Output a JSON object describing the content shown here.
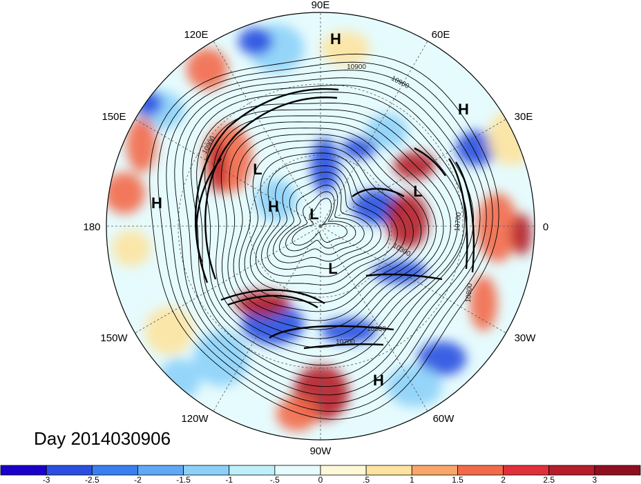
{
  "title": "Day 2014030906",
  "longitude_labels": [
    "90E",
    "60E",
    "30E",
    "0",
    "30W",
    "60W",
    "90W",
    "120W",
    "150W",
    "180",
    "150E",
    "120E"
  ],
  "pressure_centers": [
    {
      "type": "H",
      "lon_label": "~90E"
    },
    {
      "type": "H",
      "lon_label": "~40E"
    },
    {
      "type": "L",
      "lon_label": "~10E"
    },
    {
      "type": "L",
      "lon_label": "~135E"
    },
    {
      "type": "H",
      "lon_label": "~150E"
    },
    {
      "type": "L",
      "lon_label": "~170E"
    },
    {
      "type": "H",
      "lon_label": "~180"
    },
    {
      "type": "L",
      "lon_label": "~110W"
    },
    {
      "type": "H",
      "lon_label": "~75W"
    }
  ],
  "contour_labels": [
    "10900",
    "10900",
    "10900",
    "10300",
    "10700",
    "10800",
    "10700",
    "10300"
  ],
  "colorbar": {
    "tick_labels": [
      "-3",
      "-2.5",
      "-2",
      "-1.5",
      "-1",
      "-.5",
      "0",
      ".5",
      "1",
      "1.5",
      "2",
      "2.5",
      "3"
    ],
    "colors": [
      "#1a00c8",
      "#2a4fe0",
      "#3a7ff0",
      "#60a8f5",
      "#8cd0f8",
      "#bdf0fb",
      "#e6fbfd",
      "#fdf8d8",
      "#fde3a0",
      "#f9a66a",
      "#f26a4a",
      "#e0303a",
      "#b51d2a",
      "#8f0f1f"
    ]
  },
  "shading_colors": {
    "strong_negative": "#2a4fe0",
    "negative": "#8cd0f8",
    "weak_negative": "#e6fbfd",
    "weak_positive": "#fde3a0",
    "positive": "#f26a4a",
    "strong_positive": "#b51d2a"
  }
}
